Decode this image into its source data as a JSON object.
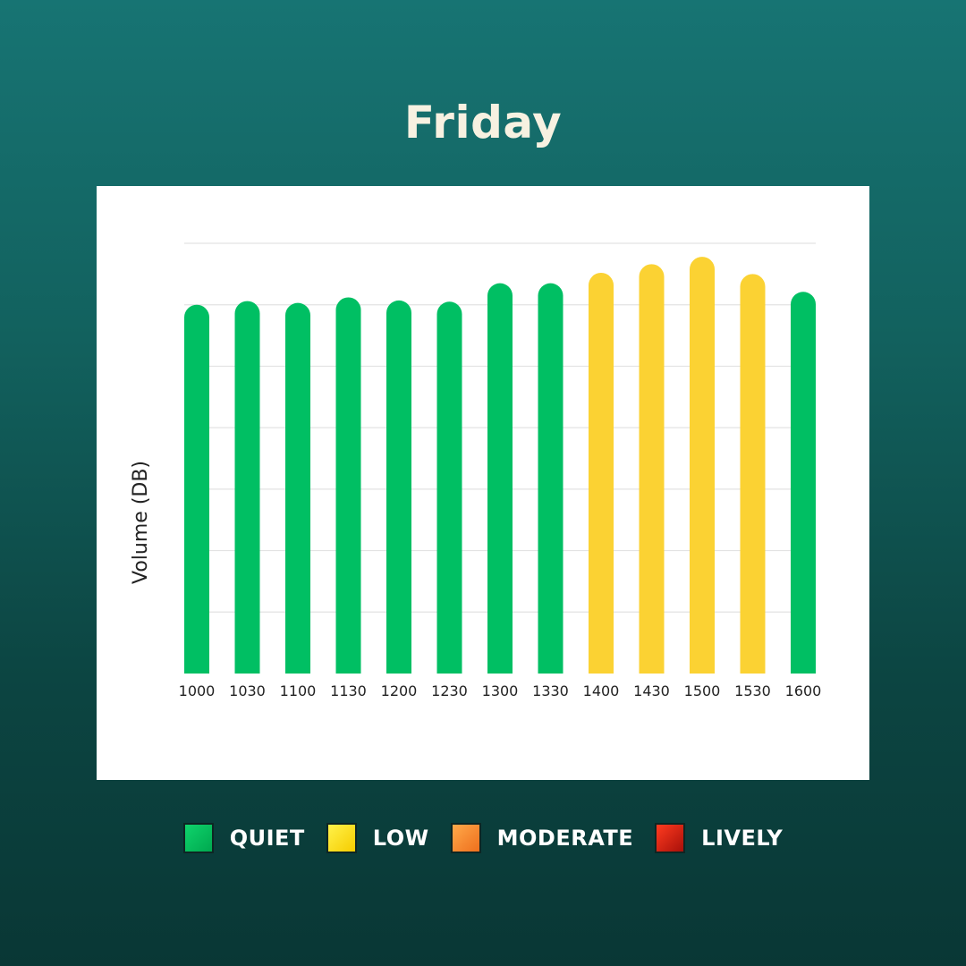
{
  "title": "Friday",
  "colors": {
    "quiet": "#00bf63",
    "low": "#fbd233",
    "moderate": "#f58c33",
    "lively": "#d8190f",
    "grid": "#e3e3e3"
  },
  "chart_data": {
    "type": "bar",
    "title": "Friday",
    "xlabel": "",
    "ylabel": "Volume (DB)",
    "ylim": [
      0,
      7
    ],
    "grid": true,
    "categories": [
      "1000",
      "1030",
      "1100",
      "1130",
      "1200",
      "1230",
      "1300",
      "1330",
      "1400",
      "1430",
      "1500",
      "1530",
      "1600"
    ],
    "values": [
      6.0,
      6.06,
      6.03,
      6.12,
      6.07,
      6.05,
      6.35,
      6.35,
      6.52,
      6.66,
      6.78,
      6.5,
      6.21
    ],
    "levels": [
      "QUIET",
      "QUIET",
      "QUIET",
      "QUIET",
      "QUIET",
      "QUIET",
      "QUIET",
      "QUIET",
      "LOW",
      "LOW",
      "LOW",
      "LOW",
      "QUIET"
    ]
  },
  "legend": [
    {
      "label": "QUIET",
      "icon": "green-swatch"
    },
    {
      "label": "LOW",
      "icon": "yellow-swatch"
    },
    {
      "label": "MODERATE",
      "icon": "orange-swatch"
    },
    {
      "label": "LIVELY",
      "icon": "red-swatch"
    }
  ]
}
